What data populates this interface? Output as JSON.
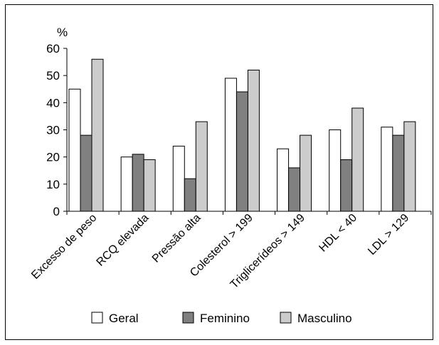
{
  "chart_data": {
    "type": "bar",
    "ylabel": "%",
    "ylim": [
      0,
      60
    ],
    "yticks": [
      0,
      10,
      20,
      30,
      40,
      50,
      60
    ],
    "grid": false,
    "legend_position": "bottom",
    "categories": [
      "Excesso de peso",
      "RCQ elevada",
      "Pressão alta",
      "Colesterol > 199",
      "Triglicerídeos > 149",
      "HDL < 40",
      "LDL > 129"
    ],
    "series": [
      {
        "name": "Geral",
        "color": "#ffffff",
        "values": [
          45,
          20,
          24,
          49,
          23,
          30,
          31
        ]
      },
      {
        "name": "Feminino",
        "color": "#808080",
        "values": [
          28,
          21,
          12,
          44,
          16,
          19,
          28
        ]
      },
      {
        "name": "Masculino",
        "color": "#cccccc",
        "values": [
          56,
          19,
          33,
          52,
          28,
          38,
          33
        ]
      }
    ]
  }
}
